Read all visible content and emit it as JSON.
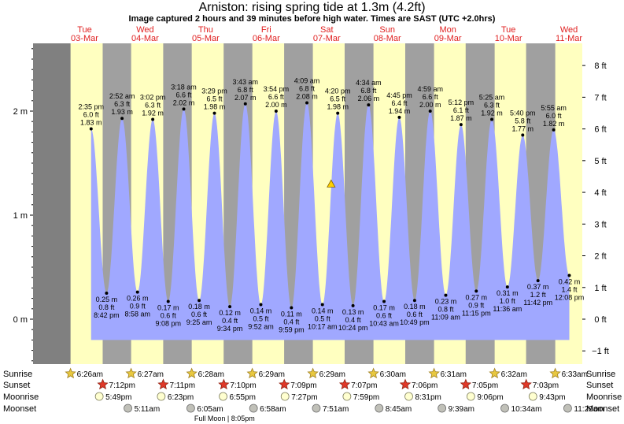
{
  "title": "Arniston: rising  spring tide at 1.3m (4.2ft)",
  "subtitle": "Image captured 2 hours and 39 minutes before high water. Times are SAST (UTC +2.0hrs)",
  "colors": {
    "day": "#ffffc0",
    "night": "#a0a0a0",
    "margin": "#808080",
    "tide_fill": "#a0a8ff",
    "day_label": "#e02020"
  },
  "chart_data": {
    "type": "area",
    "x_unit": "days since Tue 03-Mar 00:00",
    "ylim_m": [
      -0.45,
      2.65
    ],
    "yticks_m": [
      {
        "v": 0,
        "label": "0 m"
      },
      {
        "v": 1,
        "label": "1 m"
      },
      {
        "v": 2,
        "label": "2 m"
      }
    ],
    "yticks_ft": [
      {
        "v": -1,
        "label": "−1 ft"
      },
      {
        "v": 0,
        "label": "0 ft"
      },
      {
        "v": 1,
        "label": "1 ft"
      },
      {
        "v": 2,
        "label": "2 ft"
      },
      {
        "v": 3,
        "label": "3 ft"
      },
      {
        "v": 4,
        "label": "4 ft"
      },
      {
        "v": 5,
        "label": "5 ft"
      },
      {
        "v": 6,
        "label": "6 ft"
      },
      {
        "v": 7,
        "label": "7 ft"
      },
      {
        "v": 8,
        "label": "8 ft"
      }
    ],
    "days": [
      {
        "dow": "Tue",
        "date": "03-Mar",
        "sunrise": "6:26am",
        "sunset": "7:12pm",
        "moonrise": "5:49pm",
        "moonset": ""
      },
      {
        "dow": "Wed",
        "date": "04-Mar",
        "sunrise": "6:27am",
        "sunset": "7:11pm",
        "moonrise": "6:23pm",
        "moonset": "5:11am"
      },
      {
        "dow": "Thu",
        "date": "05-Mar",
        "sunrise": "6:28am",
        "sunset": "7:10pm",
        "moonrise": "6:55pm",
        "moonset": "6:05am"
      },
      {
        "dow": "Fri",
        "date": "06-Mar",
        "sunrise": "6:29am",
        "sunset": "7:09pm",
        "moonrise": "7:27pm",
        "moonset": "6:58am"
      },
      {
        "dow": "Sat",
        "date": "07-Mar",
        "sunrise": "6:29am",
        "sunset": "7:07pm",
        "moonrise": "7:59pm",
        "moonset": "7:51am"
      },
      {
        "dow": "Sun",
        "date": "08-Mar",
        "sunrise": "6:30am",
        "sunset": "7:06pm",
        "moonrise": "8:31pm",
        "moonset": "8:45am"
      },
      {
        "dow": "Mon",
        "date": "09-Mar",
        "sunrise": "6:31am",
        "sunset": "7:05pm",
        "moonrise": "9:06pm",
        "moonset": "9:39am"
      },
      {
        "dow": "Tue",
        "date": "10-Mar",
        "sunrise": "6:32am",
        "sunset": "7:03pm",
        "moonrise": "9:43pm",
        "moonset": "10:34am"
      },
      {
        "dow": "Wed",
        "date": "11-Mar",
        "sunrise": "6:33am",
        "sunset": "",
        "moonrise": "",
        "moonset": "11:29am"
      }
    ],
    "tides": [
      {
        "type": "high",
        "t": 0.608,
        "time": "2:35 pm",
        "ft": "6.0 ft",
        "m": 1.83
      },
      {
        "type": "low",
        "t": 0.863,
        "time": "8:42 pm",
        "ft": "0.8 ft",
        "m": 0.25
      },
      {
        "type": "high",
        "t": 1.119,
        "time": "2:52 am",
        "ft": "6.3 ft",
        "m": 1.93
      },
      {
        "type": "low",
        "t": 1.374,
        "time": "8:58 am",
        "ft": "0.9 ft",
        "m": 0.26
      },
      {
        "type": "high",
        "t": 1.626,
        "time": "3:02 pm",
        "ft": "6.3 ft",
        "m": 1.92
      },
      {
        "type": "low",
        "t": 1.881,
        "time": "9:08 pm",
        "ft": "0.6 ft",
        "m": 0.17
      },
      {
        "type": "high",
        "t": 2.138,
        "time": "3:18 am",
        "ft": "6.6 ft",
        "m": 2.02
      },
      {
        "type": "low",
        "t": 2.392,
        "time": "9:25 am",
        "ft": "0.6 ft",
        "m": 0.18
      },
      {
        "type": "high",
        "t": 2.645,
        "time": "3:29 pm",
        "ft": "6.5 ft",
        "m": 1.98
      },
      {
        "type": "low",
        "t": 2.899,
        "time": "9:34 pm",
        "ft": "0.4 ft",
        "m": 0.12
      },
      {
        "type": "high",
        "t": 3.155,
        "time": "3:43 am",
        "ft": "6.8 ft",
        "m": 2.07
      },
      {
        "type": "low",
        "t": 3.411,
        "time": "9:52 am",
        "ft": "0.5 ft",
        "m": 0.14
      },
      {
        "type": "high",
        "t": 3.663,
        "time": "3:54 pm",
        "ft": "6.6 ft",
        "m": 2.0
      },
      {
        "type": "low",
        "t": 3.916,
        "time": "9:59 pm",
        "ft": "0.4 ft",
        "m": 0.11
      },
      {
        "type": "high",
        "t": 4.172,
        "time": "4:09 am",
        "ft": "6.8 ft",
        "m": 2.08
      },
      {
        "type": "low",
        "t": 4.428,
        "time": "10:17 am",
        "ft": "0.5 ft",
        "m": 0.14
      },
      {
        "type": "high",
        "t": 4.681,
        "time": "4:20 pm",
        "ft": "6.5 ft",
        "m": 1.98
      },
      {
        "type": "low",
        "t": 4.933,
        "time": "10:24 pm",
        "ft": "0.4 ft",
        "m": 0.13
      },
      {
        "type": "high",
        "t": 5.19,
        "time": "4:34 am",
        "ft": "6.8 ft",
        "m": 2.06
      },
      {
        "type": "low",
        "t": 5.446,
        "time": "10:43 am",
        "ft": "0.6 ft",
        "m": 0.17
      },
      {
        "type": "high",
        "t": 5.698,
        "time": "4:45 pm",
        "ft": "6.4 ft",
        "m": 1.94
      },
      {
        "type": "low",
        "t": 5.951,
        "time": "10:49 pm",
        "ft": "0.6 ft",
        "m": 0.18
      },
      {
        "type": "high",
        "t": 6.208,
        "time": "4:59 am",
        "ft": "6.6 ft",
        "m": 2.0
      },
      {
        "type": "low",
        "t": 6.465,
        "time": "11:09 am",
        "ft": "0.8 ft",
        "m": 0.23
      },
      {
        "type": "high",
        "t": 6.717,
        "time": "5:12 pm",
        "ft": "6.1 ft",
        "m": 1.87
      },
      {
        "type": "low",
        "t": 6.969,
        "time": "11:15 pm",
        "ft": "0.9 ft",
        "m": 0.27
      },
      {
        "type": "high",
        "t": 7.226,
        "time": "5:25 am",
        "ft": "6.3 ft",
        "m": 1.92
      },
      {
        "type": "low",
        "t": 7.483,
        "time": "11:36 am",
        "ft": "1.0 ft",
        "m": 0.31
      },
      {
        "type": "high",
        "t": 7.736,
        "time": "5:40 pm",
        "ft": "5.8 ft",
        "m": 1.77
      },
      {
        "type": "low",
        "t": 7.988,
        "time": "11:42 pm",
        "ft": "1.2 ft",
        "m": 0.37
      },
      {
        "type": "high",
        "t": 8.247,
        "time": "5:55 am",
        "ft": "6.0 ft",
        "m": 1.82
      },
      {
        "type": "low",
        "t": 8.505,
        "time": "12:08 pm",
        "ft": "1.4 ft",
        "m": 0.42
      }
    ],
    "current": {
      "t": 4.572,
      "m": 1.3
    },
    "row_labels": {
      "sunrise": "Sunrise",
      "sunset": "Sunset",
      "moonrise": "Moonrise",
      "moonset": "Moonset"
    },
    "moon_phase": {
      "label": "Full Moon | 8:05pm",
      "t": 2.837
    }
  }
}
